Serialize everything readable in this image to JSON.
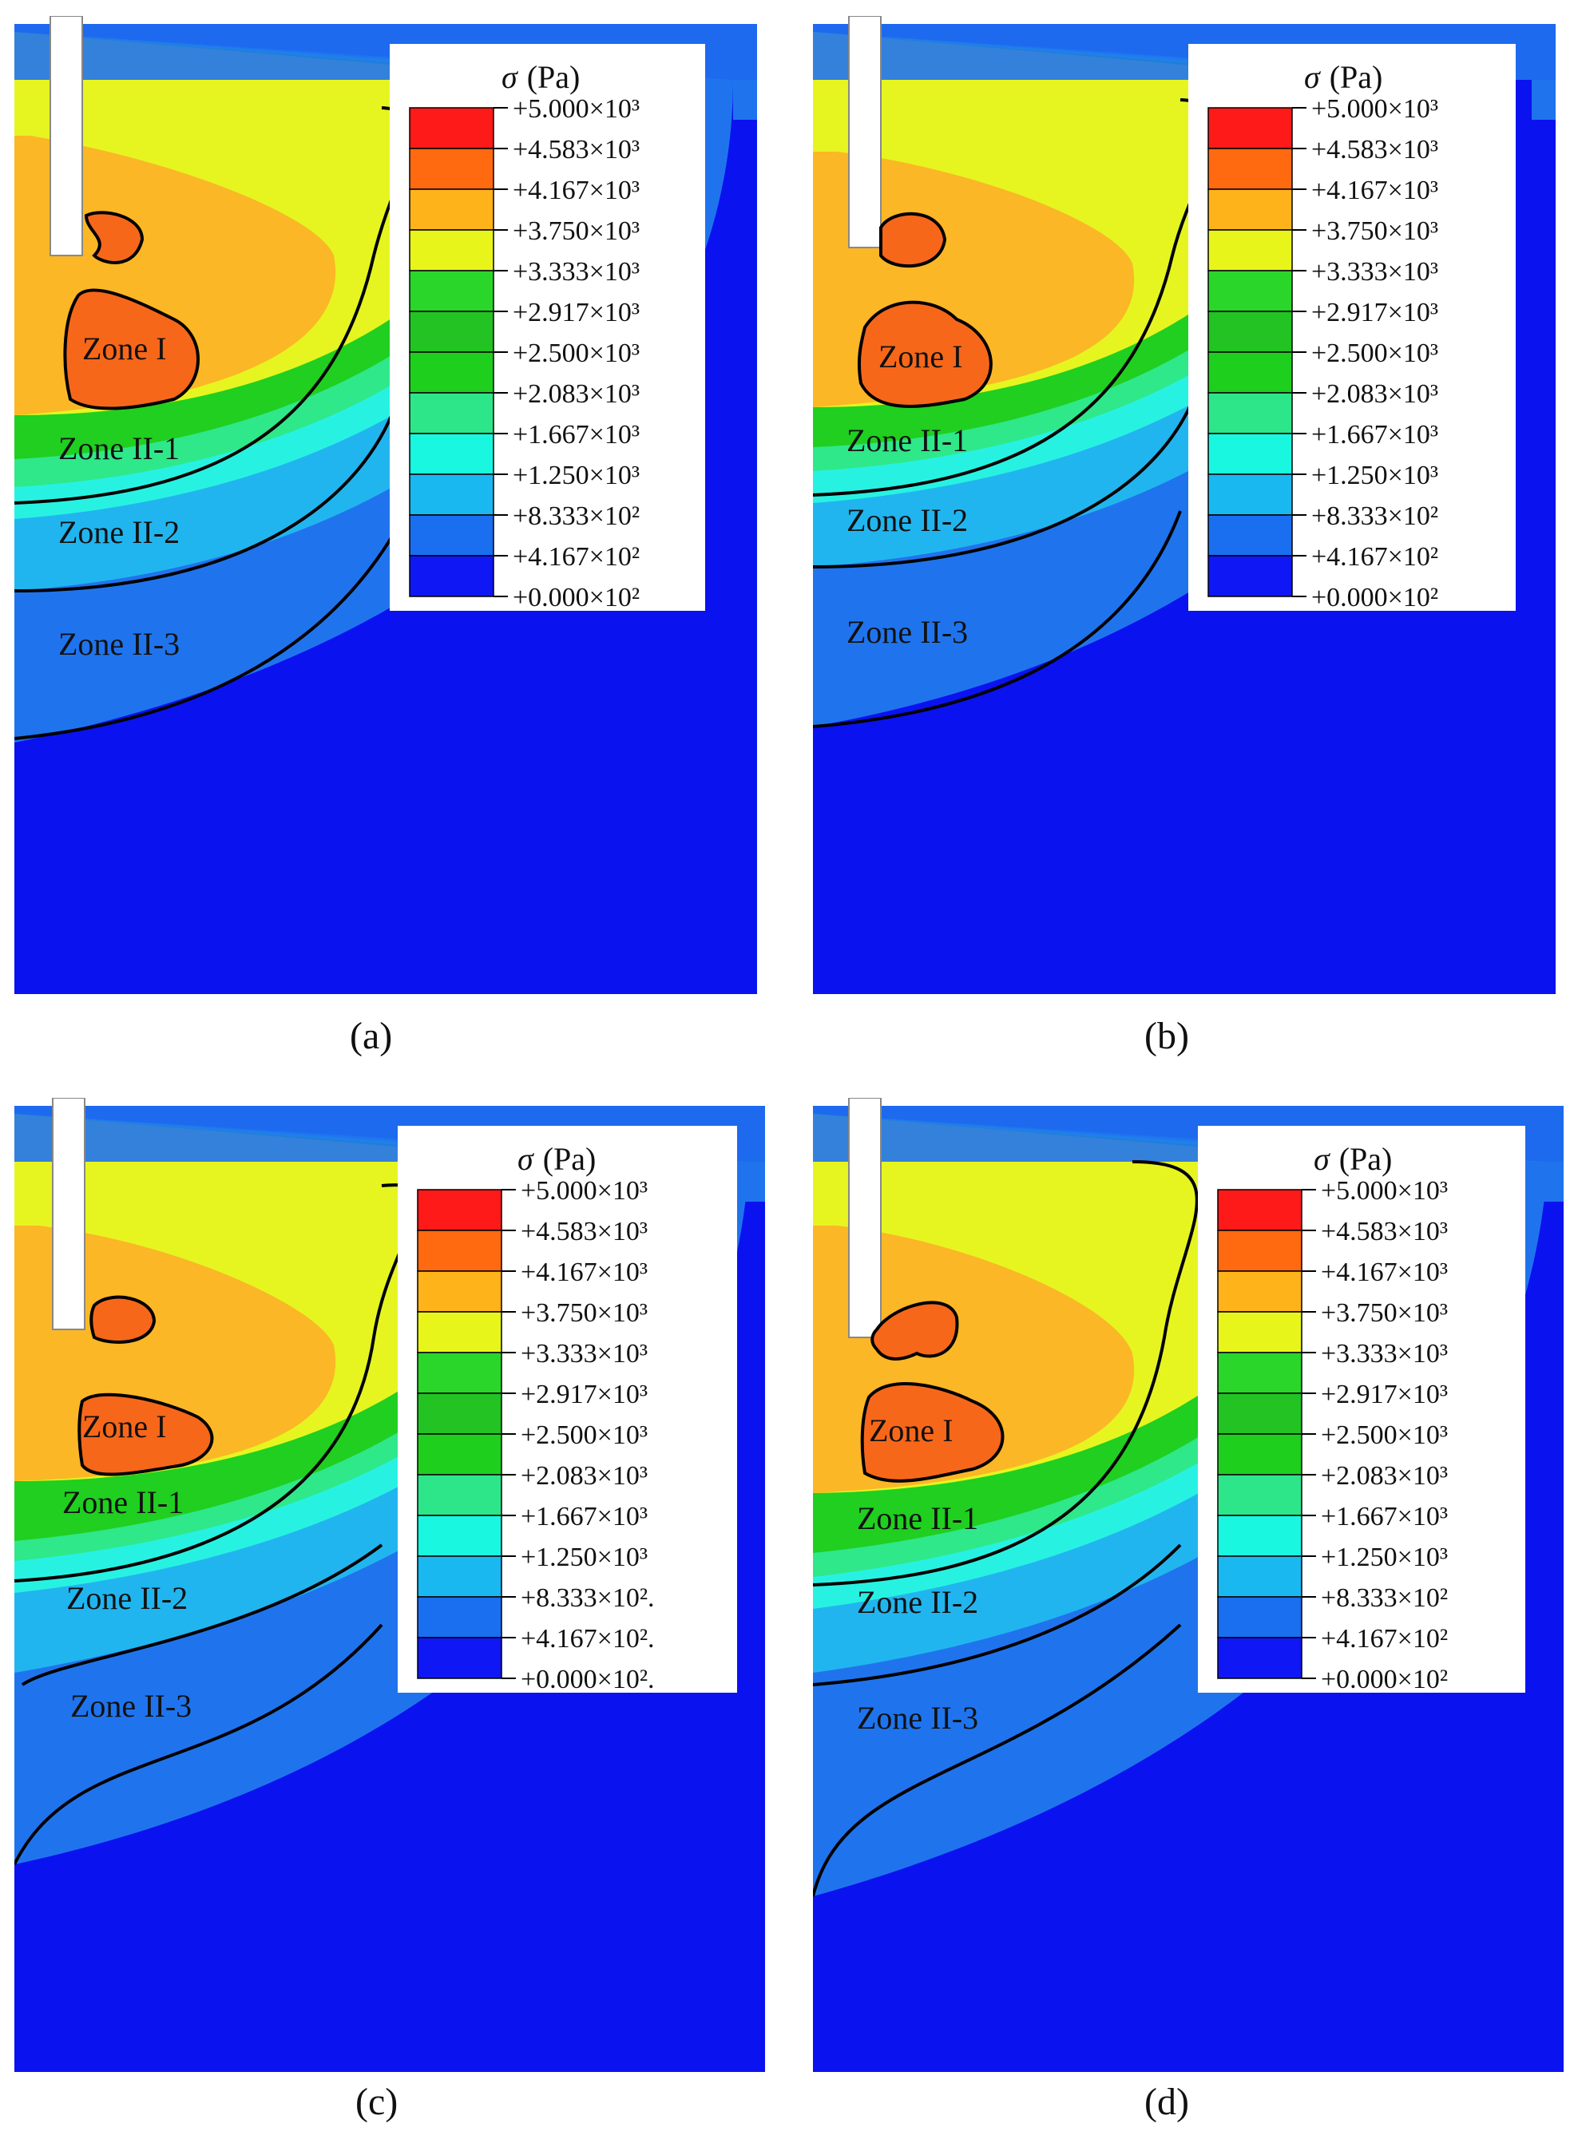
{
  "figure": {
    "panels": [
      {
        "caption": "(a)"
      },
      {
        "caption": "(b)"
      },
      {
        "caption": "(c)"
      },
      {
        "caption": "(d)"
      }
    ]
  },
  "legend": {
    "title": "σ (Pa)",
    "symbol": "σ",
    "unit": "(Pa)",
    "levels_a": [
      "+5.000×10³",
      "+4.583×10³",
      "+4.167×10³",
      "+3.750×10³",
      "+3.333×10³",
      "+2.917×10³",
      "+2.500×10³",
      "+2.083×10³",
      "+1.667×10³",
      "+1.250×10³",
      "+8.333×10²",
      "+4.167×10²",
      "+0.000×10²"
    ],
    "levels_c": [
      "+5.000×10³",
      "+4.583×10³",
      "+4.167×10³",
      "+3.750×10³",
      "+3.333×10³",
      "+2.917×10³",
      "+2.500×10³",
      "+2.083×10³",
      "+1.667×10³",
      "+1.250×10³",
      "+8.333×10².",
      "+4.167×10².",
      "+0.000×10²."
    ],
    "colors": [
      "#ff1a1a",
      "#ff6a10",
      "#ffb31a",
      "#e8f51a",
      "#2bd62b",
      "#22c322",
      "#1ecf1e",
      "#2ee68a",
      "#1af7e0",
      "#1ab8f0",
      "#1a6ef0",
      "#0f17f5"
    ]
  },
  "zones": {
    "zone1": "Zone I",
    "zone2_1": "Zone II-1",
    "zone2_2": "Zone II-2",
    "zone2_3": "Zone II-3"
  },
  "colors": {
    "deep_blue": "#0a12f0",
    "mid_blue": "#1f74ee",
    "light_blue": "#21b5ef",
    "cyan": "#27f2e2",
    "mint": "#2fe88a",
    "green": "#20cf20",
    "yellow": "#e6f520",
    "orange_yellow": "#fbb726",
    "orange": "#f7671a",
    "red": "#ff1c1c"
  }
}
